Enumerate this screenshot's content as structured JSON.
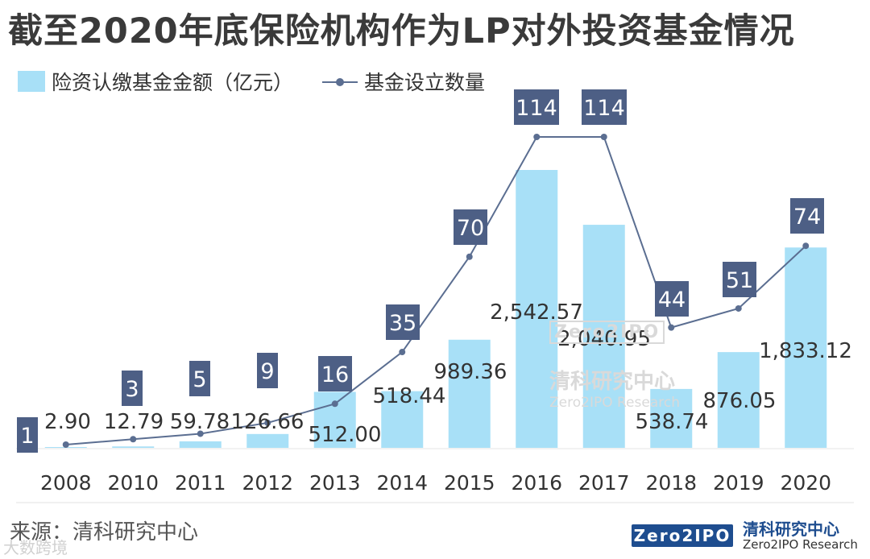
{
  "title": "截至2020年底保险机构作为LP对外投资基金情况",
  "legend": {
    "bar_label": "险资认缴基金金额（亿元）",
    "line_label": "基金设立数量"
  },
  "source": "来源：清科研究中心",
  "watermark": {
    "logo_text": "Zero2IPO",
    "cn": "清科研究中心",
    "en": "Zero2IPO Research"
  },
  "brand": {
    "logo_text": "Zero2IPO",
    "cn": "清科研究中心",
    "en": "Zero2IPO Research"
  },
  "bottom_mark": "大数跨境",
  "colors": {
    "bar": "#a8e0f7",
    "line": "#5b6e91",
    "label_box": "#4d5f85"
  },
  "chart_data": {
    "type": "bar+line",
    "categories": [
      "2008",
      "2010",
      "2011",
      "2012",
      "2013",
      "2014",
      "2015",
      "2016",
      "2017",
      "2018",
      "2019",
      "2020"
    ],
    "series": [
      {
        "name": "险资认缴基金金额（亿元）",
        "type": "bar",
        "values": [
          2.9,
          12.79,
          59.78,
          126.66,
          512.0,
          518.44,
          989.36,
          2542.57,
          2040.95,
          538.74,
          876.05,
          1833.12
        ],
        "labels": [
          "2.90",
          "12.79",
          "59.78",
          "126.66",
          "512.00",
          "518.44",
          "989.36",
          "2,542.57",
          "2,040.95",
          "538.74",
          "876.05",
          "1,833.12"
        ]
      },
      {
        "name": "基金设立数量",
        "type": "line",
        "values": [
          1,
          3,
          5,
          9,
          16,
          35,
          70,
          114,
          114,
          44,
          51,
          74
        ]
      }
    ]
  }
}
